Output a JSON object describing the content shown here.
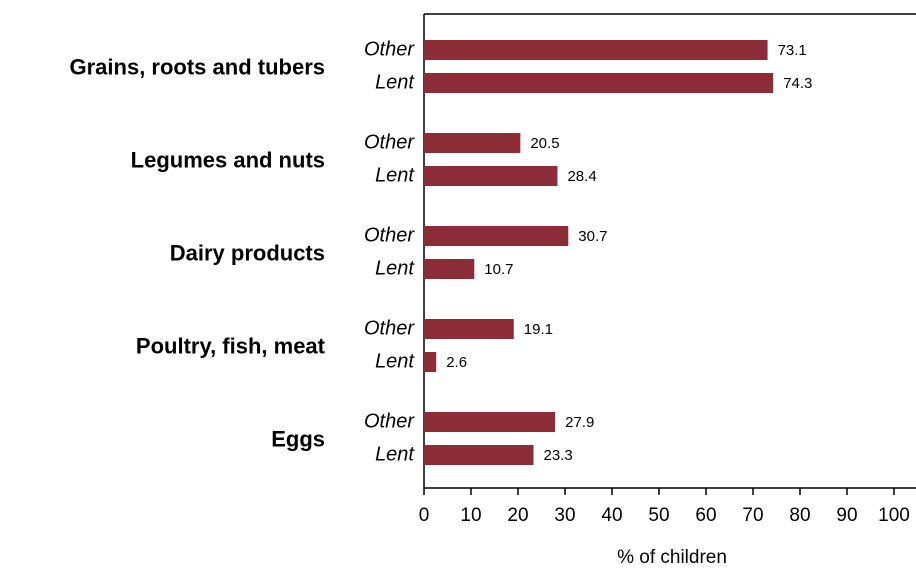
{
  "chart_data": {
    "type": "bar",
    "orientation": "horizontal",
    "x_label": "% of children",
    "categories": [
      "Grains, roots and tubers",
      "Legumes and nuts",
      "Dairy products",
      "Poultry, fish, meat",
      "Eggs"
    ],
    "series": [
      {
        "name": "Other",
        "color": "#8b2c37",
        "values": [
          73.1,
          20.5,
          30.7,
          19.1,
          27.9
        ]
      },
      {
        "name": "Lent",
        "color": "#8b2c37",
        "values": [
          74.3,
          28.4,
          10.7,
          2.6,
          23.3
        ]
      }
    ],
    "xlim": [
      0,
      104
    ],
    "xticks": [
      0,
      10,
      20,
      30,
      40,
      50,
      60,
      70,
      80,
      90,
      100
    ]
  }
}
